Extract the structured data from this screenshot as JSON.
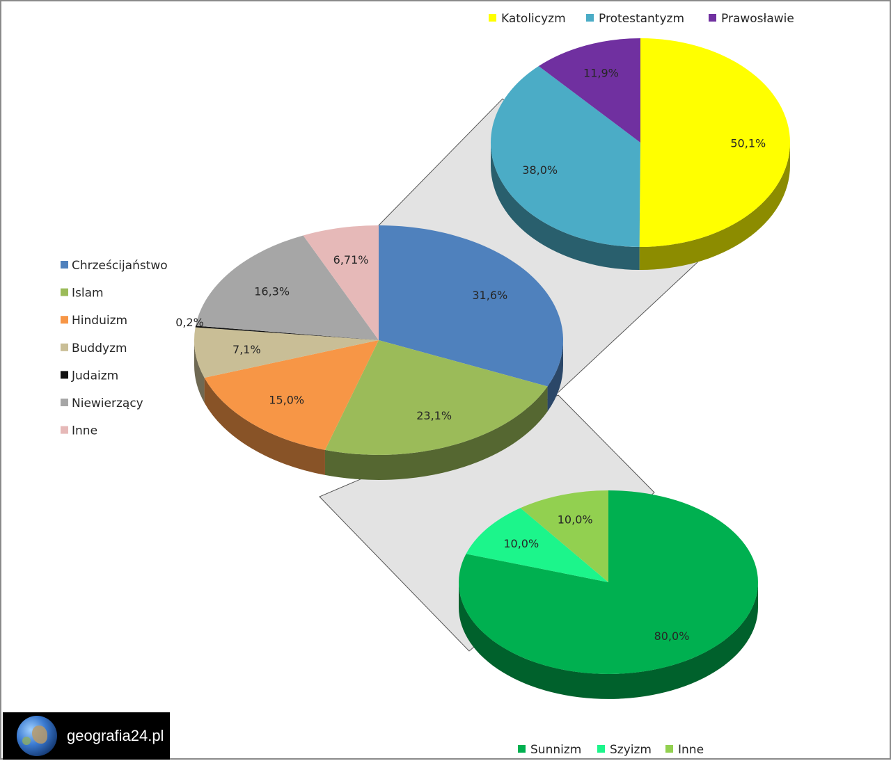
{
  "chart_data": [
    {
      "type": "pie",
      "series": [
        {
          "values": [
            31.6,
            23.1,
            15.0,
            7.1,
            0.2,
            16.3,
            6.71
          ],
          "labels": [
            "31,6%",
            "23,1%",
            "15,0%",
            "7,1%",
            "0,2%",
            "16,3%",
            "6,71%"
          ]
        }
      ],
      "categories": [
        "Chrześcijaństwo",
        "Islam",
        "Hinduizm",
        "Buddyzm",
        "Judaizm",
        "Niewierzący",
        "Inne"
      ],
      "colors": [
        "#4f81bd",
        "#9bbb59",
        "#f79646",
        "#c9be96",
        "#111111",
        "#a6a6a6",
        "#e6b9b8"
      ],
      "legend_position": "left"
    },
    {
      "type": "pie",
      "series": [
        {
          "values": [
            50.1,
            38.0,
            11.9
          ],
          "labels": [
            "50,1%",
            "38,0%",
            "11,9%"
          ]
        }
      ],
      "categories": [
        "Katolicyzm",
        "Protestantyzm",
        "Prawosławie"
      ],
      "colors": [
        "#ffff00",
        "#4bacc6",
        "#7030a0"
      ],
      "legend_position": "top"
    },
    {
      "type": "pie",
      "series": [
        {
          "values": [
            80.0,
            10.0,
            10.0
          ],
          "labels": [
            "80,0%",
            "10,0%",
            "10,0%"
          ]
        }
      ],
      "categories": [
        "Sunnizm",
        "Szyizm",
        "Inne"
      ],
      "colors": [
        "#00b050",
        "#1cf58b",
        "#92d050"
      ],
      "legend_position": "bottom"
    }
  ],
  "watermark": {
    "text": "geografia24.pl",
    "icon": "globe-icon"
  }
}
